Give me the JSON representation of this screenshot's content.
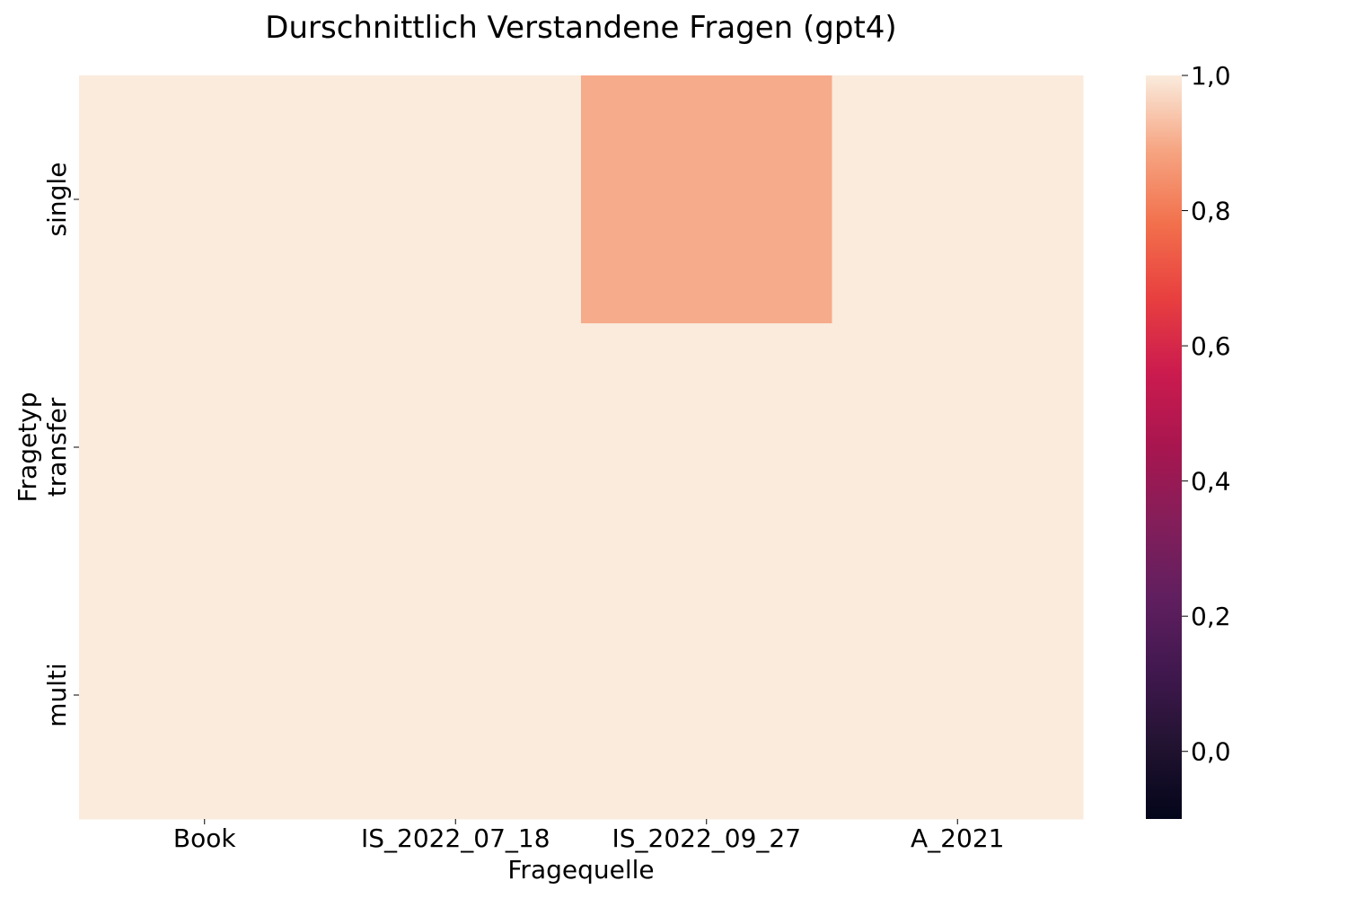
{
  "chart_data": {
    "type": "heatmap",
    "title": "Durschnittlich Verstandene Fragen (gpt4)",
    "xlabel": "Fragequelle",
    "ylabel": "Fragetyp",
    "x_categories": [
      "Book",
      "IS_2022_07_18",
      "IS_2022_09_27",
      "A_2021"
    ],
    "y_categories": [
      "single",
      "transfer",
      "multi"
    ],
    "values": [
      [
        1.0,
        1.0,
        0.9,
        1.0
      ],
      [
        1.0,
        1.0,
        1.0,
        1.0
      ],
      [
        1.0,
        1.0,
        1.0,
        1.0
      ]
    ],
    "colorbar": {
      "vmin": -0.1,
      "vmax": 1.0,
      "ticks": [
        0.0,
        0.2,
        0.4,
        0.6,
        0.8,
        1.0
      ],
      "tick_labels": [
        "0,0",
        "0,2",
        "0,4",
        "0,6",
        "0,8",
        "1,0"
      ],
      "colormap": "rocket"
    }
  }
}
